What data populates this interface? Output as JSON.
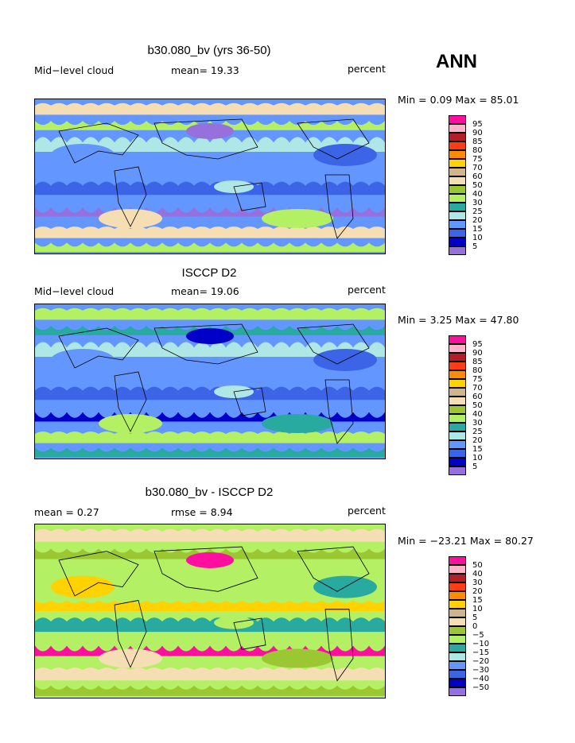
{
  "season": "ANN",
  "panels": [
    {
      "title": "b30.080_bv (yrs 36-50)",
      "left_label": "Mid−level cloud",
      "center_label": "mean=  19.33",
      "units": "percent",
      "minmax": "Min =   0.09 Max =  85.01",
      "colorbar": {
        "labels": [
          "95",
          "90",
          "85",
          "80",
          "75",
          "70",
          "60",
          "50",
          "40",
          "30",
          "25",
          "20",
          "15",
          "10",
          "5"
        ],
        "colors": [
          "#ff0fa0",
          "#ffb4c8",
          "#b41e28",
          "#ff3c14",
          "#ff8c00",
          "#ffd200",
          "#d2b48c",
          "#f5deb3",
          "#9bc832",
          "#b4f064",
          "#28aaa0",
          "#afe6e6",
          "#6496ff",
          "#3c64e6",
          "#0000c8",
          "#9670dc"
        ]
      },
      "field": {
        "base": "#6496ff",
        "bands": [
          "#f5deb3",
          "#b4f064",
          "#afe6e6",
          "#6496ff",
          "#3c64e6",
          "#9670dc"
        ]
      }
    },
    {
      "title": "ISCCP D2",
      "left_label": "Mid−level cloud",
      "center_label": "mean=  19.06",
      "units": "percent",
      "minmax": "Min =   3.25 Max =  47.80",
      "colorbar": {
        "labels": [
          "95",
          "90",
          "85",
          "80",
          "75",
          "70",
          "60",
          "50",
          "40",
          "30",
          "25",
          "20",
          "15",
          "10",
          "5"
        ],
        "colors": [
          "#ff0fa0",
          "#ffb4c8",
          "#b41e28",
          "#ff3c14",
          "#ff8c00",
          "#ffd200",
          "#d2b48c",
          "#f5deb3",
          "#9bc832",
          "#b4f064",
          "#28aaa0",
          "#afe6e6",
          "#6496ff",
          "#3c64e6",
          "#0000c8",
          "#9670dc"
        ]
      },
      "field": {
        "base": "#6496ff",
        "bands": [
          "#b4f064",
          "#28aaa0",
          "#afe6e6",
          "#6496ff",
          "#3c64e6",
          "#0000c8"
        ]
      }
    },
    {
      "title": "b30.080_bv - ISCCP D2",
      "left_label": "mean =   0.27",
      "center_label": "rmse =   8.94",
      "units": "percent",
      "minmax": "Min = −23.21 Max =  80.27",
      "colorbar": {
        "labels": [
          "50",
          "40",
          "30",
          "20",
          "15",
          "10",
          "5",
          "0",
          "−5",
          "−10",
          "−15",
          "−20",
          "−30",
          "−40",
          "−50"
        ],
        "colors": [
          "#ff0fa0",
          "#ffb4c8",
          "#b41e28",
          "#ff3c14",
          "#ff8c00",
          "#ffd200",
          "#d2b48c",
          "#f5deb3",
          "#9bc832",
          "#b4f064",
          "#28aaa0",
          "#afe6e6",
          "#6496ff",
          "#3c64e6",
          "#0000c8",
          "#9670dc"
        ]
      },
      "field": {
        "base": "#b4f064",
        "bands": [
          "#f5deb3",
          "#9bc832",
          "#b4f064",
          "#ffd200",
          "#28aaa0",
          "#ff0fa0"
        ]
      }
    }
  ]
}
